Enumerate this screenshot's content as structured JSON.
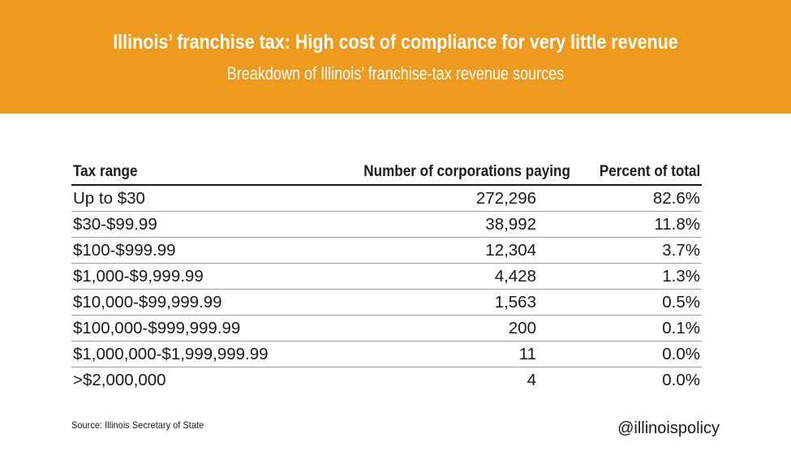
{
  "header": {
    "title": "Illinois’ franchise tax: High cost of compliance for very little revenue",
    "subtitle": "Breakdown of Illinois’ franchise-tax revenue sources",
    "background_color": "#ED9A1F"
  },
  "chart_data": {
    "type": "table",
    "title": "Illinois’ franchise tax: High cost of compliance for very little revenue",
    "subtitle": "Breakdown of Illinois’ franchise-tax revenue sources",
    "columns": [
      "Tax range",
      "Number of corporations paying",
      "Percent of total"
    ],
    "rows": [
      [
        "Up to $30",
        "272,296",
        "82.6%"
      ],
      [
        "$30-$99.99",
        "38,992",
        "11.8%"
      ],
      [
        "$100-$999.99",
        "12,304",
        "3.7%"
      ],
      [
        "$1,000-$9,999.99",
        "4,428",
        "1.3%"
      ],
      [
        "$10,000-$99,999.99",
        "1,563",
        "0.5%"
      ],
      [
        "$100,000-$999,999.99",
        "200",
        "0.1%"
      ],
      [
        "$1,000,000-$1,999,999.99",
        "11",
        "0.0%"
      ],
      [
        ">$2,000,000",
        "4",
        "0.0%"
      ]
    ]
  },
  "footer": {
    "source": "Source: Illinois Secretary of State",
    "handle": "@illinoispolicy"
  }
}
